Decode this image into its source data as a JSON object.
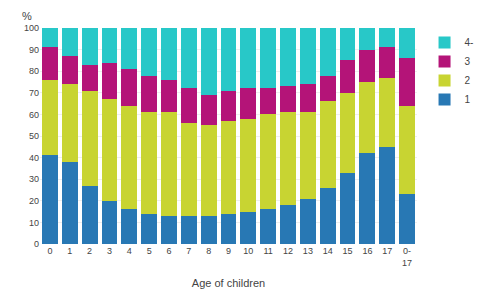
{
  "chart_data": {
    "type": "bar",
    "stacked": true,
    "xlabel": "Age of children",
    "ylabel": "%",
    "categories": [
      "0",
      "1",
      "2",
      "3",
      "4",
      "5",
      "6",
      "7",
      "8",
      "9",
      "10",
      "11",
      "12",
      "13",
      "14",
      "15",
      "16",
      "17",
      "0-\n17"
    ],
    "series": [
      {
        "name": "1",
        "color": "#2878b4",
        "values": [
          41,
          38,
          27,
          20,
          16,
          14,
          13,
          13,
          13,
          14,
          15,
          16,
          18,
          21,
          26,
          33,
          42,
          45,
          23
        ]
      },
      {
        "name": "2",
        "color": "#c8d432",
        "values": [
          35,
          36,
          44,
          47,
          48,
          47,
          48,
          43,
          42,
          43,
          43,
          44,
          43,
          40,
          40,
          37,
          33,
          32,
          41
        ]
      },
      {
        "name": "3",
        "color": "#b41478",
        "values": [
          15,
          13,
          12,
          17,
          17,
          17,
          15,
          16,
          14,
          14,
          14,
          12,
          12,
          13,
          12,
          15,
          15,
          14,
          22
        ]
      },
      {
        "name": "4-",
        "color": "#28c8c8",
        "values": [
          9,
          13,
          17,
          16,
          19,
          22,
          24,
          28,
          31,
          29,
          28,
          28,
          27,
          26,
          22,
          15,
          10,
          9,
          14
        ]
      }
    ],
    "ylim": [
      0,
      100
    ],
    "yticks": [
      0,
      10,
      20,
      30,
      40,
      50,
      60,
      70,
      80,
      90,
      100
    ],
    "grid": true,
    "legend": "right"
  }
}
